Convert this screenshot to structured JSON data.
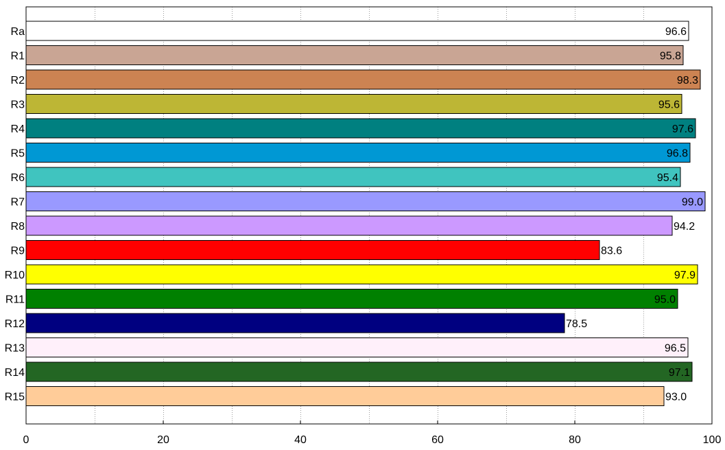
{
  "chart_data": {
    "type": "bar",
    "orientation": "horizontal",
    "categories": [
      "Ra",
      "R1",
      "R2",
      "R3",
      "R4",
      "R5",
      "R6",
      "R7",
      "R8",
      "R9",
      "R10",
      "R11",
      "R12",
      "R13",
      "R14",
      "R15"
    ],
    "values": [
      96.6,
      95.8,
      98.3,
      95.6,
      97.6,
      96.8,
      95.4,
      99.0,
      94.2,
      83.6,
      97.9,
      95.0,
      78.5,
      96.5,
      97.1,
      93.0
    ],
    "value_labels": [
      "96.6",
      "95.8",
      "98.3",
      "95.6",
      "97.6",
      "96.8",
      "95.4",
      "99.0",
      "94.2",
      "83.6",
      "97.9",
      "95.0",
      "78.5",
      "96.5",
      "97.1",
      "93.0"
    ],
    "colors": [
      "#ffffff",
      "#c9a594",
      "#cc8352",
      "#bdb635",
      "#008080",
      "#0098d4",
      "#40c4bf",
      "#9999ff",
      "#cc99ff",
      "#ff0000",
      "#ffff00",
      "#008000",
      "#000080",
      "#fff0fa",
      "#236623",
      "#ffcc99"
    ],
    "title": "",
    "xlabel": "",
    "ylabel": "",
    "xlim": [
      0,
      100
    ],
    "xticks": [
      0,
      20,
      40,
      60,
      80,
      100
    ],
    "grid": "vertical-dotted",
    "legend": "none"
  }
}
